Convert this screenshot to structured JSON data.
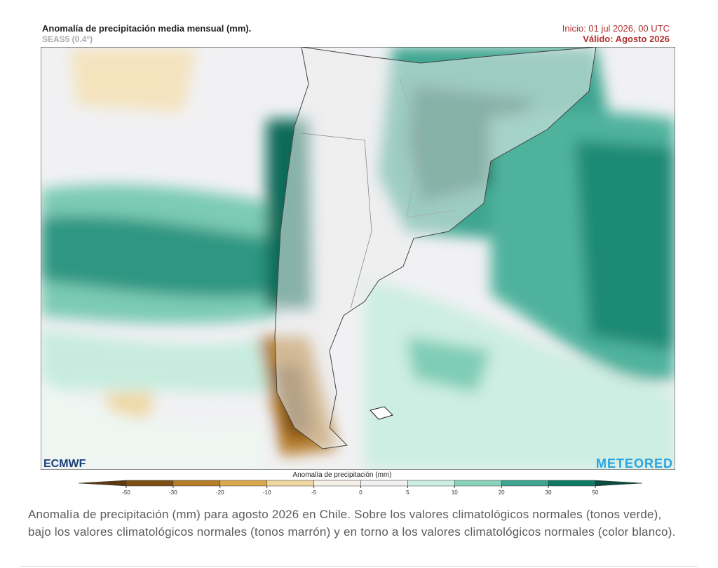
{
  "header": {
    "title": "Anomalía de precipitación media mensual (mm).",
    "subtitle": "SEAS5 (0.4°)",
    "init": "Inicio: 01 jul 2026, 00 UTC",
    "valid": "Válido: Agosto 2026"
  },
  "logos": {
    "left": "ECMWF",
    "right": "METEORED"
  },
  "colorbar": {
    "label": "Anomalía de precipitación (mm)",
    "ticks": [
      -50,
      -30,
      -20,
      -10,
      -5,
      0,
      5,
      10,
      20,
      30,
      50
    ],
    "colors": [
      "#5a3a0e",
      "#7d4f14",
      "#b57c2a",
      "#d8a94f",
      "#efd7a0",
      "#f6f1e8",
      "#f1f1f1",
      "#cbeee0",
      "#8ad3bd",
      "#3ea590",
      "#0d7a66",
      "#0a4c40"
    ]
  },
  "caption": "Anomalía de precipitación (mm) para agosto 2026 en Chile. Sobre los valores climatológicos normales (tonos verde), bajo los valores climatológicos normales (tonos marrón) y en torno a los valores climatológicos normales (color blanco)."
}
